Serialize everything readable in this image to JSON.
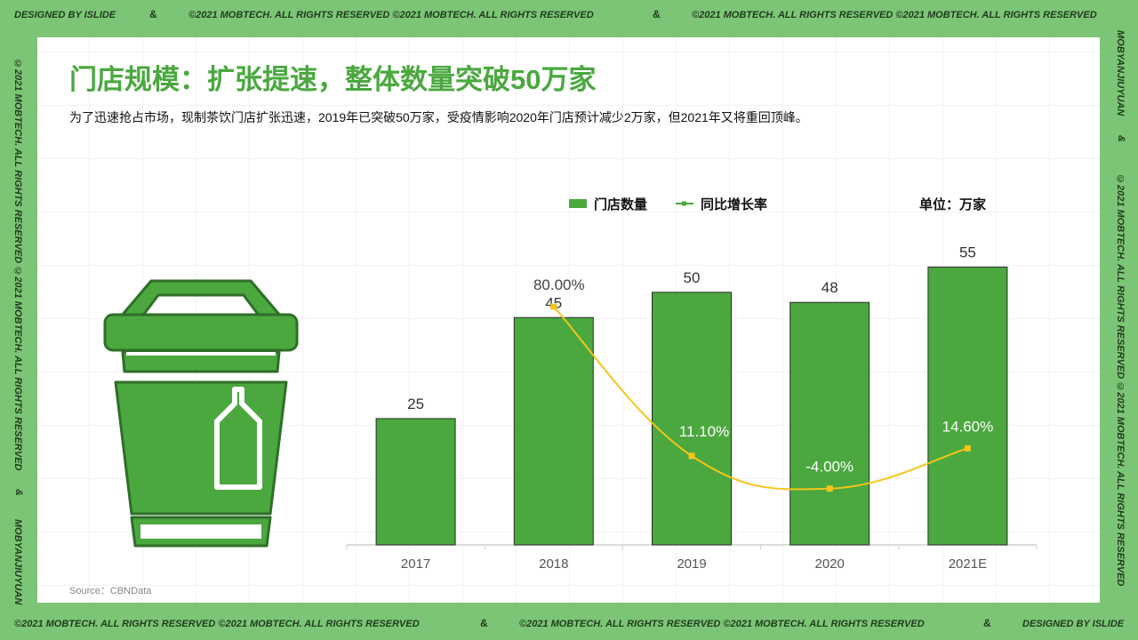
{
  "frame": {
    "top_left": "DESIGNED BY ISLIDE",
    "top_mid": "©2021 MOBTECH. ALL RIGHTS RESERVED  ©2021 MOBTECH. ALL RIGHTS RESERVED",
    "top_right": "©2021 MOBTECH. ALL RIGHTS RESERVED  ©2021 MOBTECH. ALL RIGHTS RESERVED",
    "bottom_left": "©2021 MOBTECH. ALL RIGHTS RESERVED  ©2021 MOBTECH. ALL RIGHTS RESERVED",
    "bottom_mid": "©2021 MOBTECH. ALL RIGHTS RESERVED  ©2021 MOBTECH. ALL RIGHTS RESERVED",
    "bottom_right": "DESIGNED BY ISLIDE",
    "left_vertical": "©2021 MOBTECH. ALL RIGHTS RESERVED  ©2021 MOBTECH. ALL RIGHTS RESERVED",
    "left_vertical_end": "MOBYANJIUYUAN",
    "right_vertical_top": "MOBYANJIUYUAN",
    "right_vertical": "©2021 MOBTECH. ALL RIGHTS RESERVED  ©2021 MOBTECH. ALL RIGHTS RESERVED",
    "ampersand": "&"
  },
  "title": "门店规模：扩张提速，整体数量突破50万家",
  "subtitle": "为了迅速抢占市场，现制茶饮门店扩张迅速，2019年已突破50万家，受疫情影响2020年门店预计减少2万家，但2021年又将重回顶峰。",
  "source": "Source：CBNData",
  "colors": {
    "bar": "#4aa83f",
    "line": "#f5c518",
    "title": "#4aa83f"
  },
  "icon": "green-tea-cup-icon",
  "chart_data": {
    "type": "bar",
    "categories": [
      "2017",
      "2018",
      "2019",
      "2020",
      "2021E"
    ],
    "unit_label": "单位：万家",
    "ylim": [
      0,
      60
    ],
    "series": [
      {
        "name": "门店数量",
        "type": "bar",
        "values": [
          25,
          45,
          50,
          48,
          55
        ],
        "labels": [
          "25",
          "45",
          "50",
          "48",
          "55"
        ]
      },
      {
        "name": "同比增长率",
        "type": "line",
        "values": [
          null,
          80.0,
          11.1,
          -4.0,
          14.6
        ],
        "labels": [
          "",
          "80.00%",
          "11.10%",
          "-4.00%",
          "14.60%"
        ],
        "ylim": [
          -30,
          110
        ]
      }
    ],
    "legend_position": "top"
  }
}
